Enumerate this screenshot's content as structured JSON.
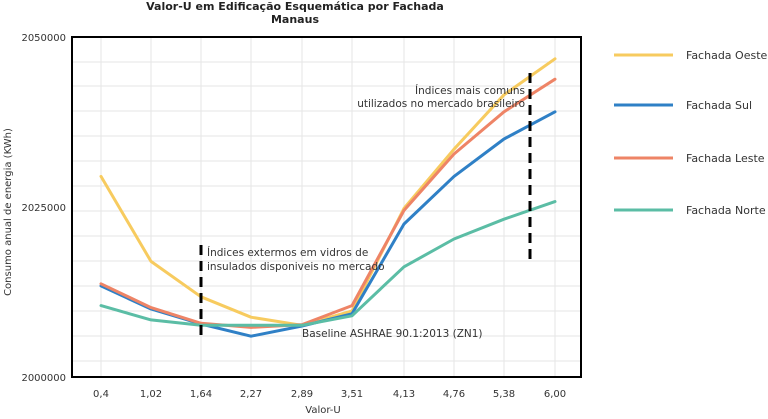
{
  "chart_data": {
    "type": "line",
    "title": "Valor-U  em Edificação Esquemática por Fachada",
    "subtitle": "Manaus",
    "xlabel": "Valor-U",
    "ylabel": "Consumo anual de energia (KWh)",
    "categories": [
      "0,4",
      "1,02",
      "1,64",
      "2,27",
      "2,89",
      "3,51",
      "4,13",
      "4,76",
      "5,38",
      "6,00"
    ],
    "y_ticks": [
      "2050000",
      "2025000",
      "2000000"
    ],
    "ylim": [
      2000000,
      2050000
    ],
    "grid": true,
    "legend_position": "right",
    "series": [
      {
        "name": "Fachada Oeste",
        "color": "#F7CB5F",
        "values": [
          2029500,
          2017000,
          2011800,
          2008800,
          2007600,
          2009700,
          2024800,
          2033500,
          2041500,
          2046800
        ]
      },
      {
        "name": "Fachada Sul",
        "color": "#2F80C6",
        "values": [
          2013400,
          2010000,
          2007800,
          2006000,
          2007500,
          2009300,
          2022500,
          2029500,
          2035000,
          2039000
        ]
      },
      {
        "name": "Fachada Leste",
        "color": "#EE8466",
        "values": [
          2013700,
          2010200,
          2007900,
          2007300,
          2007700,
          2010500,
          2024500,
          2032800,
          2039000,
          2043800
        ]
      },
      {
        "name": "Fachada Norte",
        "color": "#5BBDA5",
        "values": [
          2010500,
          2008400,
          2007600,
          2007600,
          2007600,
          2009000,
          2016200,
          2020300,
          2023200,
          2025800
        ]
      }
    ],
    "annotations": [
      {
        "lines": [
          "Índices mais comuns",
          "utilizados no mercado brasileiro"
        ]
      },
      {
        "lines": [
          "Índices extermos em vidros de",
          "insulados disponiveis no mercado"
        ]
      },
      {
        "lines": [
          "Baseline ASHRAE 90.1:2013 (ZN1)"
        ]
      }
    ]
  }
}
